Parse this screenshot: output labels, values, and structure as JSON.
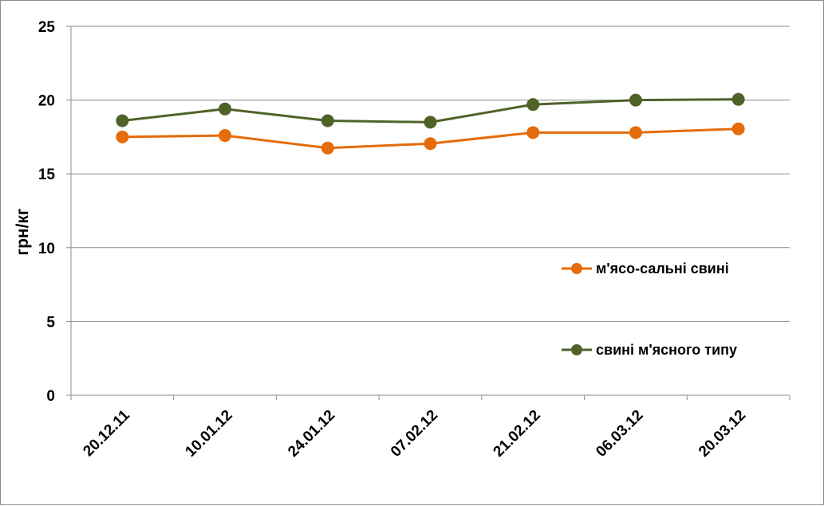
{
  "chart_data": {
    "type": "line",
    "title": "",
    "xlabel": "",
    "ylabel": "грн/кг",
    "ylim": [
      0,
      25
    ],
    "yticks": [
      0,
      5,
      10,
      15,
      20,
      25
    ],
    "grid": true,
    "legend_position": "right",
    "categories": [
      "20.12.11",
      "10.01.12",
      "24.01.12",
      "07.02.12",
      "21.02.12",
      "06.03.12",
      "20.03.12"
    ],
    "series": [
      {
        "name": "м'ясо-сальні свині",
        "color": "#e46c0a",
        "values": [
          17.5,
          17.6,
          16.75,
          17.05,
          17.8,
          17.8,
          18.05
        ]
      },
      {
        "name": "свині м'ясного типу",
        "color": "#4f6228",
        "values": [
          18.6,
          19.4,
          18.6,
          18.5,
          19.7,
          20.0,
          20.05
        ]
      }
    ]
  }
}
